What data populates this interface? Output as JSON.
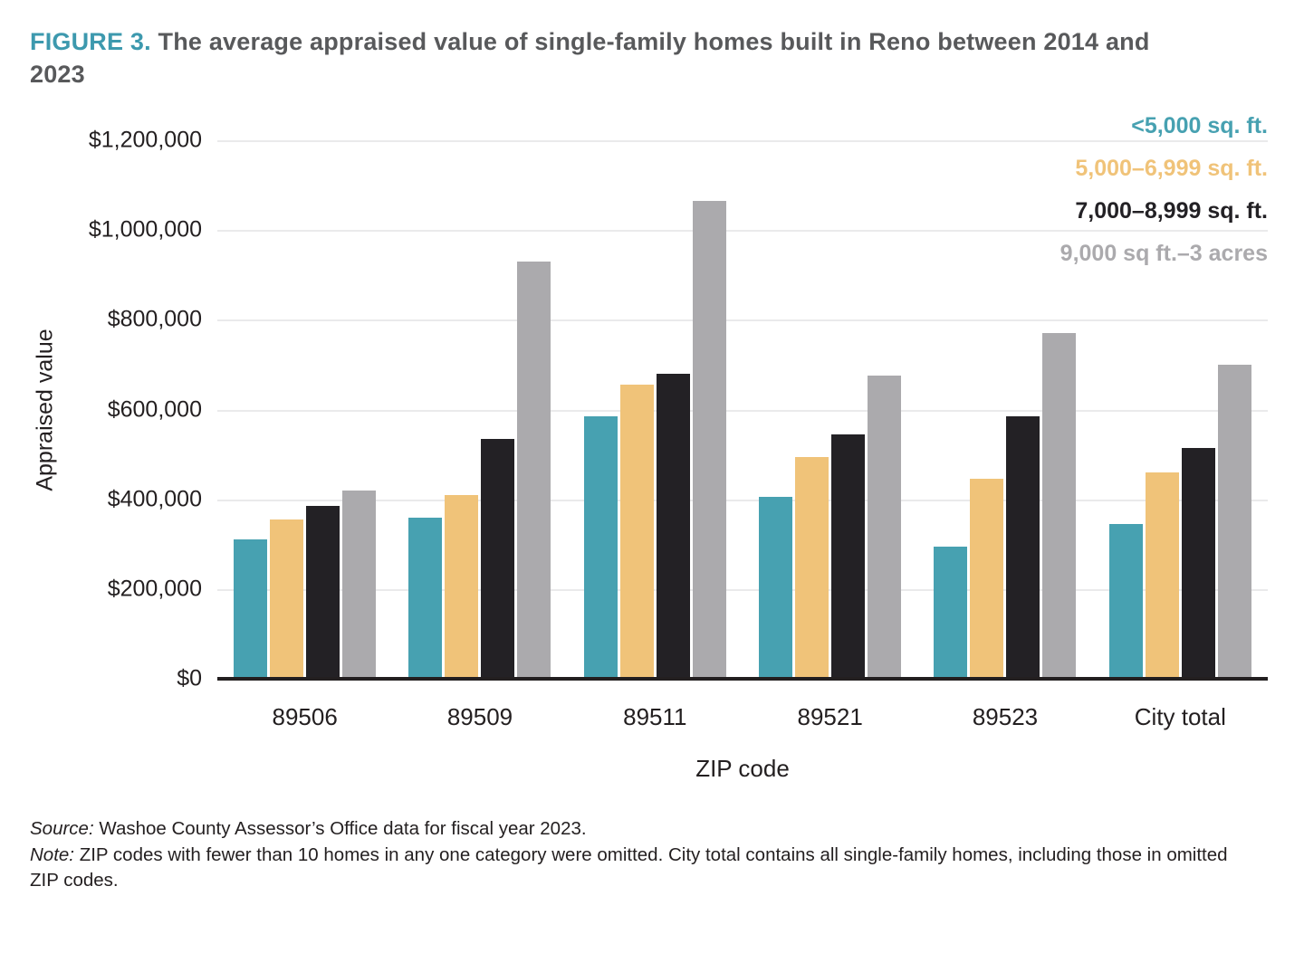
{
  "header": {
    "figure_label": "FIGURE 3.",
    "title_text": "The average appraised value of single-family homes built in Reno between 2014 and 2023"
  },
  "chart_data": {
    "type": "bar",
    "title": "FIGURE 3. The average appraised value of single-family homes built in Reno between 2014 and 2023",
    "categories": [
      "89506",
      "89509",
      "89511",
      "89521",
      "89523",
      "City total"
    ],
    "series": [
      {
        "key": "lt-5000-sqft",
        "name": "<5,000 sq. ft.",
        "color": "#47A1B1",
        "values": [
          310000,
          360000,
          585000,
          405000,
          295000,
          345000
        ]
      },
      {
        "key": "5000-6999-sqft",
        "name": "5,000–6,999 sq. ft.",
        "color": "#F0C379",
        "values": [
          355000,
          410000,
          655000,
          495000,
          445000,
          460000
        ]
      },
      {
        "key": "7000-8999-sqft",
        "name": "7,000–8,999 sq. ft.",
        "color": "#232125",
        "values": [
          385000,
          535000,
          680000,
          545000,
          585000,
          515000
        ]
      },
      {
        "key": "9000sqft-3acres",
        "name": "9,000 sq ft.–3 acres",
        "color": "#ABAAAD",
        "values": [
          420000,
          930000,
          1065000,
          675000,
          770000,
          700000
        ]
      }
    ],
    "xlabel": "ZIP code",
    "ylabel": "Appraised value",
    "ylim": [
      0,
      1200000
    ],
    "ytick_step": 200000,
    "ytick_labels": [
      "$1,200,000",
      "$1,000,000",
      "$800,000",
      "$600,000",
      "$400,000",
      "$200,000",
      "$0"
    ],
    "grid": "horizontal",
    "legend_position": "top-right"
  },
  "footer": {
    "source_label": "Source:",
    "source_text": "Washoe County Assessor’s Office data for fiscal year 2023.",
    "note_label": "Note:",
    "note_text": "ZIP codes with fewer than 10 homes in any one category were omitted. City total contains all single-family homes, including those in omitted ZIP codes."
  },
  "colors": {
    "accent_teal": "#3D99AE",
    "title_gray": "#58595B",
    "text_dark": "#231F20",
    "gridline": "#EAEAEB",
    "axis_line": "#231F20"
  }
}
